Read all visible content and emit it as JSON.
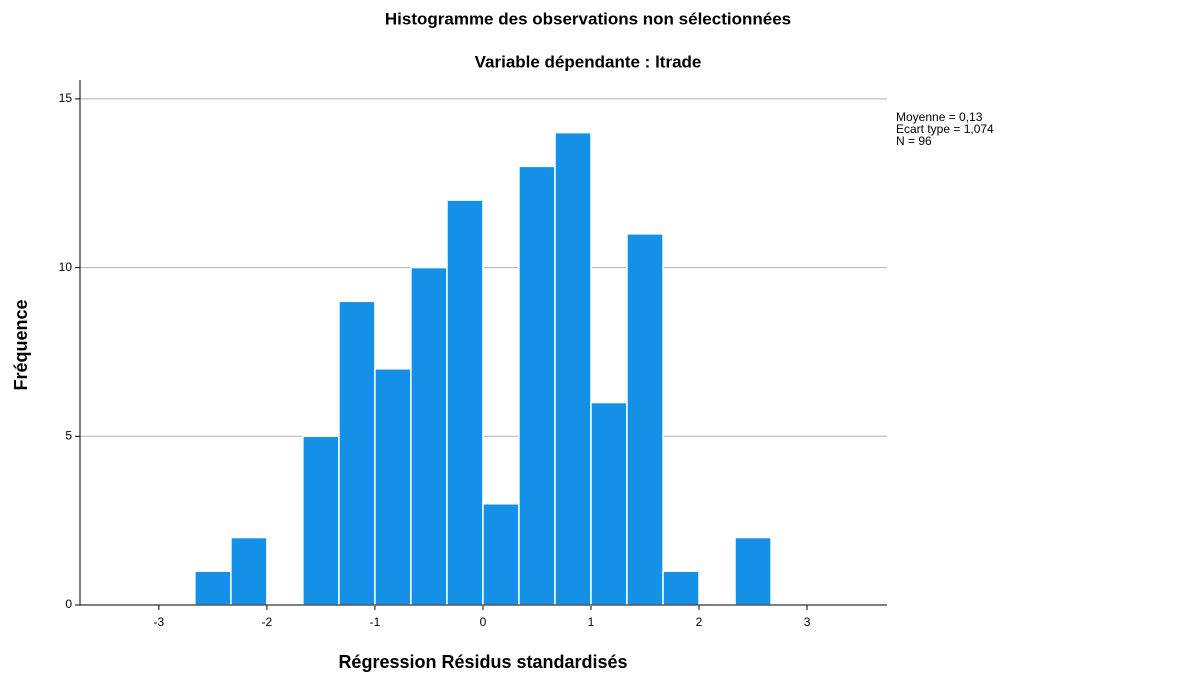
{
  "chart_data": {
    "type": "histogram",
    "title": "Histogramme des observations non sélectionnées",
    "subtitle": "Variable dépendante : ltrade",
    "x_label": "Régression Résidus standardisés",
    "y_label": "Fréquence",
    "annotations": [
      "Moyenne = 0,13",
      "Ecart type = 1,074",
      "N = 96"
    ],
    "bins": [
      -2.667,
      -2.333,
      -2,
      -1.667,
      -1.333,
      -1,
      -0.667,
      -0.333,
      0,
      0.333,
      0.667,
      1,
      1.333,
      1.667,
      2,
      2.333,
      2.667
    ],
    "counts": [
      1,
      2,
      0,
      5,
      9,
      7,
      10,
      12,
      3,
      13,
      14,
      6,
      11,
      1,
      0,
      2
    ],
    "color": "#1490e6",
    "xlim": [
      -3.73,
      3.74
    ],
    "xticks": [
      -3,
      -2,
      -1,
      0,
      1,
      2,
      3
    ],
    "ylim": [
      0,
      15.56
    ],
    "yticks": [
      0,
      5,
      10,
      15
    ],
    "grid": true
  }
}
